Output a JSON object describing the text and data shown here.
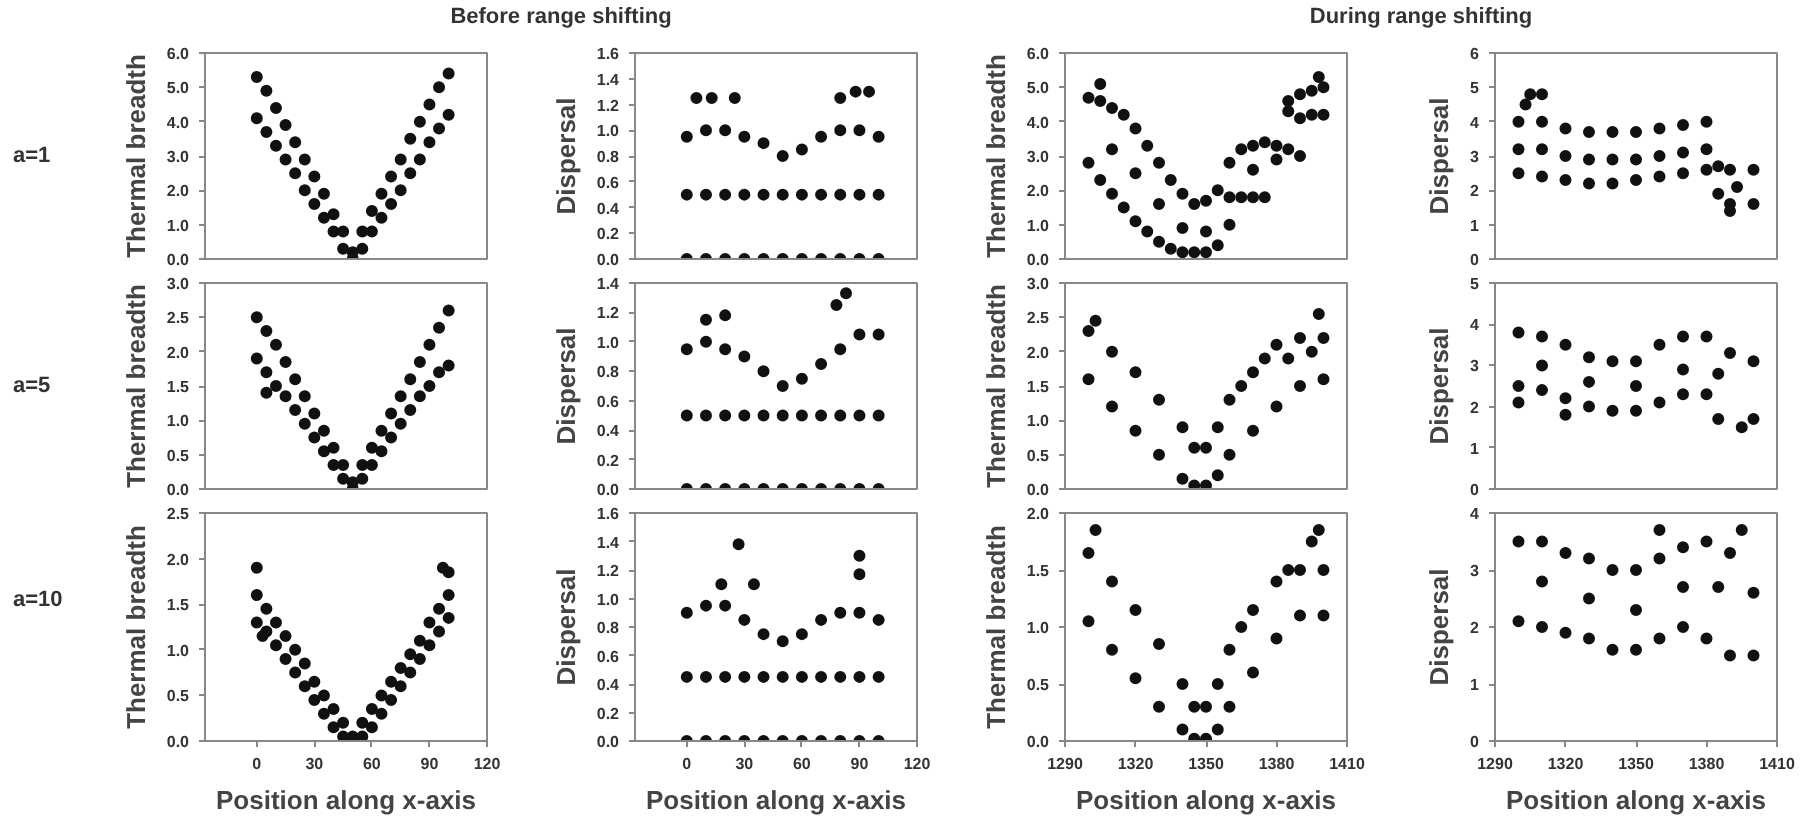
{
  "chart_data": [
    {
      "type": "scatter",
      "title": "Before range shifting",
      "ylabel": "Thermal breadth",
      "annotations": [
        "a=1"
      ],
      "tick_labels": "y",
      "marker": "circle",
      "xlim": [
        -27,
        120
      ],
      "xticks": [
        0,
        30,
        60,
        90,
        120
      ],
      "ylim": [
        0,
        6
      ],
      "yticks": [
        {
          "value": 0,
          "label": "0.0"
        },
        {
          "value": 1,
          "label": "1.0"
        },
        {
          "value": 2,
          "label": "2.0"
        },
        {
          "value": 3,
          "label": "3.0"
        },
        {
          "value": 4,
          "label": "4.0"
        },
        {
          "value": 5,
          "label": "5.0"
        },
        {
          "value": 6,
          "label": "6.0"
        }
      ],
      "series": [
        {
          "color": "#111111",
          "x": [
            0,
            5,
            10,
            15,
            20,
            25,
            30,
            35,
            40,
            45,
            50,
            55,
            60,
            65,
            70,
            75,
            80,
            85,
            90,
            95,
            100,
            0,
            5,
            10,
            15,
            20,
            25,
            30,
            35,
            40,
            45,
            50,
            55,
            60,
            65,
            70,
            75,
            80,
            85,
            90,
            95,
            100
          ],
          "values": [
            5.3,
            4.9,
            4.4,
            3.9,
            3.4,
            2.9,
            2.4,
            1.9,
            1.3,
            0.8,
            0.2,
            0.8,
            1.4,
            1.9,
            2.4,
            2.9,
            3.5,
            4.0,
            4.5,
            5.0,
            5.4,
            4.1,
            3.7,
            3.3,
            2.9,
            2.5,
            2.0,
            1.6,
            1.2,
            0.8,
            0.3,
            0.0,
            0.3,
            0.8,
            1.2,
            1.6,
            2.0,
            2.5,
            2.9,
            3.4,
            3.8,
            4.2
          ]
        }
      ]
    },
    {
      "type": "scatter",
      "ylabel": "Dispersal",
      "tick_labels": "y",
      "marker": "circle",
      "xlim": [
        -27,
        120
      ],
      "xticks": [
        0,
        30,
        60,
        90,
        120
      ],
      "ylim": [
        0,
        1.6
      ],
      "yticks": [
        {
          "value": 0,
          "label": "0.0"
        },
        {
          "value": 0.2,
          "label": "0.2"
        },
        {
          "value": 0.4,
          "label": "0.4"
        },
        {
          "value": 0.6,
          "label": "0.6"
        },
        {
          "value": 0.8,
          "label": "0.8"
        },
        {
          "value": 1,
          "label": "1.0"
        },
        {
          "value": 1.2,
          "label": "1.2"
        },
        {
          "value": 1.4,
          "label": "1.4"
        },
        {
          "value": 1.6,
          "label": "1.6"
        }
      ],
      "series": [
        {
          "color": "#111111",
          "x": [
            0,
            10,
            20,
            30,
            40,
            50,
            60,
            70,
            80,
            90,
            100,
            0,
            10,
            20,
            30,
            40,
            50,
            60,
            70,
            80,
            90,
            100,
            0,
            10,
            20,
            30,
            40,
            50,
            60,
            70,
            80,
            90,
            100,
            5,
            13,
            25,
            80,
            88,
            95
          ],
          "values": [
            0.95,
            1.0,
            1.0,
            0.95,
            0.9,
            0.8,
            0.85,
            0.95,
            1.0,
            1.0,
            0.95,
            0.5,
            0.5,
            0.5,
            0.5,
            0.5,
            0.5,
            0.5,
            0.5,
            0.5,
            0.5,
            0.5,
            0.0,
            0.0,
            0.0,
            0.0,
            0.0,
            0.0,
            0.0,
            0.0,
            0.0,
            0.0,
            0.0,
            1.25,
            1.25,
            1.25,
            1.25,
            1.3,
            1.3
          ]
        }
      ]
    },
    {
      "type": "scatter",
      "title": "During range shifting",
      "ylabel": "Thermal breadth",
      "tick_labels": "y",
      "marker": "circle",
      "xlim": [
        1290,
        1410
      ],
      "xticks": [
        1290,
        1320,
        1350,
        1380,
        1410
      ],
      "ylim": [
        0,
        6
      ],
      "yticks": [
        {
          "value": 0,
          "label": "0.0"
        },
        {
          "value": 1,
          "label": "1.0"
        },
        {
          "value": 2,
          "label": "2.0"
        },
        {
          "value": 3,
          "label": "3.0"
        },
        {
          "value": 4,
          "label": "4.0"
        },
        {
          "value": 5,
          "label": "5.0"
        },
        {
          "value": 6,
          "label": "6.0"
        }
      ],
      "series": [
        {
          "color": "#111111",
          "x": [
            1300,
            1305,
            1310,
            1315,
            1320,
            1325,
            1330,
            1335,
            1340,
            1345,
            1350,
            1355,
            1360,
            1365,
            1370,
            1375,
            1380,
            1385,
            1390,
            1300,
            1305,
            1310,
            1315,
            1320,
            1325,
            1330,
            1335,
            1340,
            1345,
            1350,
            1355,
            1360,
            1365,
            1370,
            1375,
            1385,
            1390,
            1395,
            1400,
            1385,
            1390,
            1395,
            1400,
            1398,
            1305,
            1310,
            1320,
            1330,
            1340,
            1350,
            1360,
            1370,
            1380
          ],
          "values": [
            4.7,
            4.6,
            4.4,
            4.2,
            3.8,
            3.3,
            2.8,
            2.3,
            1.9,
            1.6,
            1.7,
            2.0,
            2.8,
            3.2,
            3.3,
            3.4,
            3.3,
            3.2,
            3.0,
            2.8,
            2.3,
            1.9,
            1.5,
            1.1,
            0.8,
            0.5,
            0.3,
            0.2,
            0.2,
            0.2,
            0.4,
            1.0,
            1.8,
            1.8,
            1.8,
            4.6,
            4.8,
            4.9,
            5.0,
            4.3,
            4.1,
            4.2,
            4.2,
            5.3,
            5.1,
            3.2,
            2.5,
            1.6,
            0.9,
            0.8,
            1.8,
            2.6,
            2.9
          ]
        }
      ]
    },
    {
      "type": "scatter",
      "ylabel": "Dispersal",
      "tick_labels": "y",
      "marker": "circle",
      "xlim": [
        1290,
        1410
      ],
      "xticks": [
        1290,
        1320,
        1350,
        1380,
        1410
      ],
      "ylim": [
        0,
        6
      ],
      "yticks": [
        0,
        1,
        2,
        3,
        4,
        5,
        6
      ],
      "series": [
        {
          "color": "#111111",
          "x": [
            1300,
            1310,
            1320,
            1330,
            1340,
            1350,
            1360,
            1370,
            1380,
            1300,
            1310,
            1320,
            1330,
            1340,
            1350,
            1360,
            1370,
            1380,
            1300,
            1310,
            1320,
            1330,
            1340,
            1350,
            1360,
            1370,
            1380,
            1385,
            1390,
            1400,
            1385,
            1390,
            1400,
            1393,
            1305,
            1310,
            1303,
            1390
          ],
          "values": [
            4.0,
            4.0,
            3.8,
            3.7,
            3.7,
            3.7,
            3.8,
            3.9,
            4.0,
            2.5,
            2.4,
            2.3,
            2.2,
            2.2,
            2.3,
            2.4,
            2.5,
            2.6,
            3.2,
            3.2,
            3.0,
            2.9,
            2.9,
            2.9,
            3.0,
            3.1,
            3.2,
            2.7,
            2.6,
            2.6,
            1.9,
            1.6,
            1.6,
            2.1,
            4.8,
            4.8,
            4.5,
            1.4
          ]
        }
      ]
    },
    {
      "type": "scatter",
      "ylabel": "Thermal breadth",
      "annotations": [
        "a=5"
      ],
      "tick_labels": "y",
      "marker": "circle",
      "xlim": [
        -27,
        120
      ],
      "xticks": [
        0,
        30,
        60,
        90,
        120
      ],
      "ylim": [
        0,
        3
      ],
      "yticks": [
        {
          "value": 0,
          "label": "0.0"
        },
        {
          "value": 0.5,
          "label": "0.5"
        },
        {
          "value": 1,
          "label": "1.0"
        },
        {
          "value": 1.5,
          "label": "1.5"
        },
        {
          "value": 2,
          "label": "2.0"
        },
        {
          "value": 2.5,
          "label": "2.5"
        },
        {
          "value": 3,
          "label": "3.0"
        }
      ],
      "series": [
        {
          "color": "#111111",
          "x": [
            0,
            5,
            10,
            15,
            20,
            25,
            30,
            35,
            40,
            45,
            50,
            55,
            60,
            65,
            70,
            75,
            80,
            85,
            90,
            95,
            100,
            0,
            5,
            10,
            15,
            20,
            25,
            30,
            35,
            40,
            45,
            50,
            55,
            60,
            65,
            70,
            75,
            80,
            85,
            90,
            95,
            100,
            5
          ],
          "values": [
            2.5,
            2.3,
            2.1,
            1.85,
            1.6,
            1.35,
            1.1,
            0.85,
            0.6,
            0.35,
            0.1,
            0.35,
            0.6,
            0.85,
            1.1,
            1.35,
            1.6,
            1.85,
            2.1,
            2.35,
            2.6,
            1.9,
            1.7,
            1.5,
            1.35,
            1.15,
            0.95,
            0.75,
            0.55,
            0.35,
            0.15,
            0.0,
            0.15,
            0.35,
            0.55,
            0.75,
            0.95,
            1.15,
            1.35,
            1.5,
            1.7,
            1.8,
            1.4
          ]
        }
      ]
    },
    {
      "type": "scatter",
      "ylabel": "Dispersal",
      "tick_labels": "y",
      "marker": "circle",
      "xlim": [
        -27,
        120
      ],
      "xticks": [
        0,
        30,
        60,
        90,
        120
      ],
      "ylim": [
        0,
        1.4
      ],
      "yticks": [
        {
          "value": 0,
          "label": "0.0"
        },
        {
          "value": 0.2,
          "label": "0.2"
        },
        {
          "value": 0.4,
          "label": "0.4"
        },
        {
          "value": 0.6,
          "label": "0.6"
        },
        {
          "value": 0.8,
          "label": "0.8"
        },
        {
          "value": 1,
          "label": "1.0"
        },
        {
          "value": 1.2,
          "label": "1.2"
        },
        {
          "value": 1.4,
          "label": "1.4"
        }
      ],
      "series": [
        {
          "color": "#111111",
          "x": [
            0,
            10,
            20,
            30,
            40,
            50,
            60,
            70,
            80,
            90,
            100,
            0,
            10,
            20,
            30,
            40,
            50,
            60,
            70,
            80,
            90,
            100,
            0,
            10,
            20,
            30,
            40,
            50,
            60,
            70,
            80,
            90,
            100,
            10,
            20,
            78,
            83
          ],
          "values": [
            0.95,
            1.0,
            0.95,
            0.9,
            0.8,
            0.7,
            0.75,
            0.85,
            0.95,
            1.05,
            1.05,
            0.5,
            0.5,
            0.5,
            0.5,
            0.5,
            0.5,
            0.5,
            0.5,
            0.5,
            0.5,
            0.5,
            0.0,
            0.0,
            0.0,
            0.0,
            0.0,
            0.0,
            0.0,
            0.0,
            0.0,
            0.0,
            0.0,
            1.15,
            1.18,
            1.25,
            1.33
          ]
        }
      ]
    },
    {
      "type": "scatter",
      "ylabel": "Thermal breadth",
      "tick_labels": "y",
      "marker": "circle",
      "xlim": [
        1290,
        1410
      ],
      "xticks": [
        1290,
        1320,
        1350,
        1380,
        1410
      ],
      "ylim": [
        0,
        3
      ],
      "yticks": [
        {
          "value": 0,
          "label": "0.0"
        },
        {
          "value": 0.5,
          "label": "0.5"
        },
        {
          "value": 1,
          "label": "1.0"
        },
        {
          "value": 1.5,
          "label": "1.5"
        },
        {
          "value": 2,
          "label": "2.0"
        },
        {
          "value": 2.5,
          "label": "2.5"
        },
        {
          "value": 3,
          "label": "3.0"
        }
      ],
      "series": [
        {
          "color": "#111111",
          "x": [
            1300,
            1310,
            1320,
            1330,
            1340,
            1345,
            1350,
            1355,
            1360,
            1365,
            1370,
            1375,
            1380,
            1390,
            1400,
            1300,
            1310,
            1320,
            1330,
            1340,
            1345,
            1350,
            1355,
            1360,
            1370,
            1380,
            1390,
            1400,
            1385,
            1395,
            1398,
            1303
          ],
          "values": [
            2.3,
            2.0,
            1.7,
            1.3,
            0.9,
            0.6,
            0.6,
            0.9,
            1.3,
            1.5,
            1.7,
            1.9,
            2.1,
            2.2,
            2.2,
            1.6,
            1.2,
            0.85,
            0.5,
            0.15,
            0.05,
            0.05,
            0.2,
            0.5,
            0.85,
            1.2,
            1.5,
            1.6,
            1.9,
            2.0,
            2.55,
            2.45
          ]
        }
      ]
    },
    {
      "type": "scatter",
      "ylabel": "Dispersal",
      "tick_labels": "y",
      "marker": "circle",
      "xlim": [
        1290,
        1410
      ],
      "xticks": [
        1290,
        1320,
        1350,
        1380,
        1410
      ],
      "ylim": [
        0,
        5
      ],
      "yticks": [
        0,
        1,
        2,
        3,
        4,
        5
      ],
      "series": [
        {
          "color": "#111111",
          "x": [
            1300,
            1310,
            1320,
            1330,
            1340,
            1350,
            1360,
            1370,
            1380,
            1390,
            1300,
            1310,
            1320,
            1330,
            1340,
            1350,
            1360,
            1370,
            1380,
            1385,
            1400,
            1385,
            1395,
            1400,
            1310,
            1330,
            1350,
            1370,
            1300,
            1320
          ],
          "values": [
            3.8,
            3.7,
            3.5,
            3.2,
            3.1,
            3.1,
            3.5,
            3.7,
            3.7,
            3.3,
            2.5,
            2.4,
            2.2,
            2.0,
            1.9,
            1.9,
            2.1,
            2.3,
            2.3,
            2.8,
            3.1,
            1.7,
            1.5,
            1.7,
            3.0,
            2.6,
            2.5,
            2.9,
            2.1,
            1.8
          ]
        }
      ]
    },
    {
      "type": "scatter",
      "xlabel": "Position along x-axis",
      "ylabel": "Thermal breadth",
      "annotations": [
        "a=10"
      ],
      "marker": "circle",
      "xlim": [
        -27,
        120
      ],
      "xticks": [
        0,
        30,
        60,
        90,
        120
      ],
      "ylim": [
        0,
        2.5
      ],
      "yticks": [
        {
          "value": 0,
          "label": "0.0"
        },
        {
          "value": 0.5,
          "label": "0.5"
        },
        {
          "value": 1,
          "label": "1.0"
        },
        {
          "value": 1.5,
          "label": "1.5"
        },
        {
          "value": 2,
          "label": "2.0"
        },
        {
          "value": 2.5,
          "label": "2.5"
        }
      ],
      "series": [
        {
          "color": "#111111",
          "x": [
            0,
            5,
            10,
            15,
            20,
            25,
            30,
            35,
            40,
            45,
            50,
            55,
            60,
            65,
            70,
            75,
            80,
            85,
            90,
            95,
            100,
            0,
            5,
            10,
            15,
            20,
            25,
            30,
            35,
            40,
            45,
            55,
            60,
            65,
            70,
            75,
            80,
            85,
            90,
            95,
            100,
            0,
            97,
            100,
            3
          ],
          "values": [
            1.6,
            1.45,
            1.3,
            1.15,
            1.0,
            0.85,
            0.65,
            0.5,
            0.35,
            0.2,
            0.05,
            0.2,
            0.35,
            0.5,
            0.65,
            0.8,
            0.95,
            1.1,
            1.3,
            1.45,
            1.6,
            1.3,
            1.2,
            1.05,
            0.9,
            0.75,
            0.6,
            0.45,
            0.3,
            0.15,
            0.05,
            0.05,
            0.15,
            0.3,
            0.45,
            0.6,
            0.75,
            0.9,
            1.05,
            1.2,
            1.35,
            1.9,
            1.9,
            1.85,
            1.15
          ]
        }
      ]
    },
    {
      "type": "scatter",
      "xlabel": "Position along x-axis",
      "ylabel": "Dispersal",
      "marker": "circle",
      "xlim": [
        -27,
        120
      ],
      "xticks": [
        0,
        30,
        60,
        90,
        120
      ],
      "ylim": [
        0,
        1.6
      ],
      "yticks": [
        {
          "value": 0,
          "label": "0.0"
        },
        {
          "value": 0.2,
          "label": "0.2"
        },
        {
          "value": 0.4,
          "label": "0.4"
        },
        {
          "value": 0.6,
          "label": "0.6"
        },
        {
          "value": 0.8,
          "label": "0.8"
        },
        {
          "value": 1,
          "label": "1.0"
        },
        {
          "value": 1.2,
          "label": "1.2"
        },
        {
          "value": 1.4,
          "label": "1.4"
        },
        {
          "value": 1.6,
          "label": "1.6"
        }
      ],
      "series": [
        {
          "color": "#111111",
          "x": [
            0,
            10,
            20,
            30,
            40,
            50,
            60,
            70,
            80,
            90,
            100,
            0,
            10,
            20,
            30,
            40,
            50,
            60,
            70,
            80,
            90,
            100,
            0,
            10,
            20,
            30,
            40,
            50,
            60,
            70,
            80,
            90,
            100,
            27,
            90,
            90,
            18,
            35
          ],
          "values": [
            0.9,
            0.95,
            0.95,
            0.85,
            0.75,
            0.7,
            0.75,
            0.85,
            0.9,
            0.9,
            0.85,
            0.45,
            0.45,
            0.45,
            0.45,
            0.45,
            0.45,
            0.45,
            0.45,
            0.45,
            0.45,
            0.45,
            0.0,
            0.0,
            0.0,
            0.0,
            0.0,
            0.0,
            0.0,
            0.0,
            0.0,
            0.0,
            0.0,
            1.38,
            1.3,
            1.17,
            1.1,
            1.1
          ]
        }
      ]
    },
    {
      "type": "scatter",
      "xlabel": "Position along x-axis",
      "ylabel": "Thermal breadth",
      "marker": "circle",
      "xlim": [
        1290,
        1410
      ],
      "xticks": [
        1290,
        1320,
        1350,
        1380,
        1410
      ],
      "ylim": [
        0,
        2
      ],
      "yticks": [
        {
          "value": 0,
          "label": "0.0"
        },
        {
          "value": 0.5,
          "label": "0.5"
        },
        {
          "value": 1,
          "label": "1.0"
        },
        {
          "value": 1.5,
          "label": "1.5"
        },
        {
          "value": 2,
          "label": "2.0"
        }
      ],
      "series": [
        {
          "color": "#111111",
          "x": [
            1300,
            1310,
            1320,
            1330,
            1340,
            1345,
            1350,
            1355,
            1360,
            1365,
            1370,
            1380,
            1385,
            1390,
            1400,
            1300,
            1310,
            1320,
            1330,
            1340,
            1345,
            1350,
            1355,
            1360,
            1370,
            1380,
            1390,
            1400,
            1303,
            1398,
            1395
          ],
          "values": [
            1.65,
            1.4,
            1.15,
            0.85,
            0.5,
            0.3,
            0.3,
            0.5,
            0.8,
            1.0,
            1.15,
            1.4,
            1.5,
            1.5,
            1.5,
            1.05,
            0.8,
            0.55,
            0.3,
            0.1,
            0.02,
            0.02,
            0.1,
            0.3,
            0.6,
            0.9,
            1.1,
            1.1,
            1.85,
            1.85,
            1.75
          ]
        }
      ]
    },
    {
      "type": "scatter",
      "xlabel": "Position along x-axis",
      "ylabel": "Dispersal",
      "marker": "circle",
      "xlim": [
        1290,
        1410
      ],
      "xticks": [
        1290,
        1320,
        1350,
        1380,
        1410
      ],
      "ylim": [
        0,
        4
      ],
      "yticks": [
        0,
        1,
        2,
        3,
        4
      ],
      "series": [
        {
          "color": "#111111",
          "x": [
            1300,
            1310,
            1320,
            1330,
            1340,
            1350,
            1360,
            1370,
            1380,
            1390,
            1400,
            1300,
            1310,
            1320,
            1330,
            1340,
            1350,
            1360,
            1370,
            1380,
            1390,
            1400,
            1310,
            1330,
            1350,
            1370,
            1385,
            1360,
            1395
          ],
          "values": [
            3.5,
            3.5,
            3.3,
            3.2,
            3.0,
            3.0,
            3.2,
            3.4,
            3.5,
            3.3,
            2.6,
            2.1,
            2.0,
            1.9,
            1.8,
            1.6,
            1.6,
            1.8,
            2.0,
            1.8,
            1.5,
            1.5,
            2.8,
            2.5,
            2.3,
            2.7,
            2.7,
            3.7,
            3.7
          ]
        }
      ]
    }
  ]
}
